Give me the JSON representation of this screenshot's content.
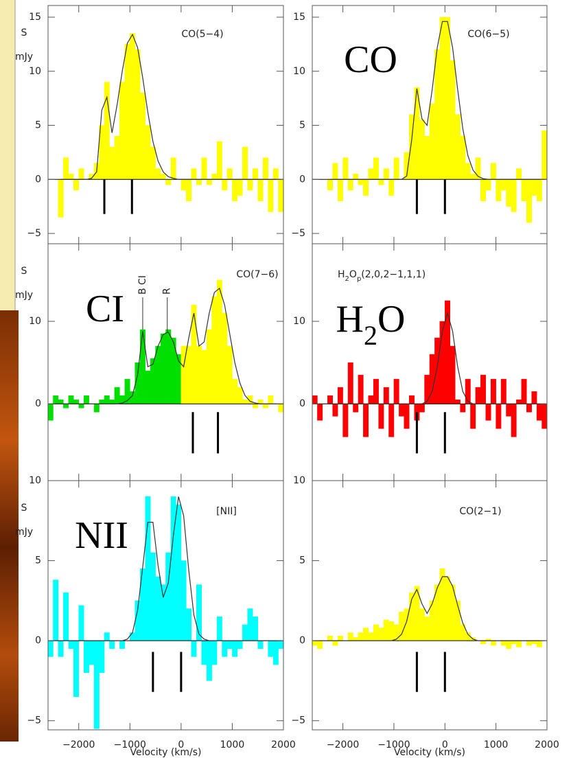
{
  "chart_data": [
    {
      "type": "step",
      "title": [
        {
          "text": "CO(5−4)"
        }
      ],
      "color": "#ffff00",
      "fit_color": "#333333",
      "x": [
        -2550,
        -2450,
        -2350,
        -2250,
        -2150,
        -2050,
        -1950,
        -1850,
        -1750,
        -1650,
        -1550,
        -1450,
        -1350,
        -1250,
        -1150,
        -1050,
        -950,
        -850,
        -750,
        -650,
        -550,
        -450,
        -350,
        -250,
        -150,
        -50,
        50,
        150,
        250,
        350,
        450,
        550,
        650,
        750,
        850,
        950,
        1050,
        1150,
        1250,
        1350,
        1450,
        1550,
        1650,
        1750,
        1850,
        1950
      ],
      "values": [
        null,
        null,
        -3.5,
        2,
        0.5,
        -1,
        1,
        0,
        0.5,
        1.5,
        5,
        9,
        3,
        4,
        9,
        12.5,
        13.5,
        12,
        8,
        5,
        3,
        1,
        0.5,
        -0.5,
        2,
        0,
        -1,
        -2,
        1,
        -0.5,
        2,
        -0.5,
        0.5,
        3.5,
        -1,
        1,
        -2,
        -1.5,
        3,
        -1,
        1,
        -2,
        2,
        -3,
        1,
        -3
      ],
      "fit": [
        null,
        null,
        0,
        0,
        0,
        0,
        0,
        0,
        0.1,
        0.7,
        6.4,
        7.6,
        4.3,
        6.9,
        10,
        12.6,
        13.4,
        12.2,
        9.4,
        6.2,
        3.5,
        1.7,
        0.7,
        0.25,
        0.1,
        0,
        0,
        0,
        0,
        0,
        0,
        0,
        0,
        0,
        0,
        0,
        0,
        0,
        0,
        0,
        0,
        0,
        0,
        0,
        0,
        0
      ],
      "markers": {
        "x": [
          -1500,
          -960
        ],
        "y": [
          -3.2,
          0
        ]
      },
      "xlim": [
        -2600,
        2000
      ],
      "xticks": [
        -2000,
        -1000,
        0,
        1000,
        2000
      ],
      "xtick_labels": false,
      "ylim": [
        -5.95,
        16.08
      ],
      "yticks": [
        15,
        10,
        5,
        0,
        {
          "value": -5,
          "label": "−5"
        }
      ],
      "ylabel": [
        "S",
        "mJy"
      ]
    },
    {
      "type": "step",
      "title": [
        {
          "text": "CO(6−5)"
        }
      ],
      "overlay": [
        {
          "text": "CO"
        }
      ],
      "color": "#ffff00",
      "fit_color": "#333333",
      "x": [
        -2550,
        -2450,
        -2350,
        -2250,
        -2150,
        -2050,
        -1950,
        -1850,
        -1750,
        -1650,
        -1550,
        -1450,
        -1350,
        -1250,
        -1150,
        -1050,
        -950,
        -850,
        -750,
        -650,
        -550,
        -450,
        -350,
        -250,
        -150,
        -50,
        50,
        150,
        250,
        350,
        450,
        550,
        650,
        750,
        850,
        950,
        1050,
        1150,
        1250,
        1350,
        1450,
        1550,
        1650,
        1750,
        1850,
        1950
      ],
      "values": [
        null,
        null,
        null,
        -1,
        1.5,
        -2,
        2,
        -1,
        0.5,
        -0.5,
        -1.5,
        1,
        2,
        -0.5,
        1,
        -1.5,
        2,
        0,
        2.5,
        6,
        8.5,
        5.5,
        4,
        7,
        12,
        15,
        15,
        11,
        6,
        4,
        1.5,
        0.5,
        2,
        -2,
        -1,
        1.5,
        -2,
        -1,
        -2.5,
        -3,
        1,
        -2,
        -4,
        -1.5,
        -2,
        4.5
      ],
      "fit": [
        null,
        null,
        null,
        0,
        0,
        0,
        0,
        0,
        0,
        0,
        0,
        0,
        0,
        0,
        0,
        0,
        0,
        0,
        0.3,
        3.7,
        8.4,
        5.6,
        5,
        8.3,
        12.2,
        14.6,
        14.6,
        12.2,
        8.3,
        4.7,
        2.2,
        0.86,
        0.28,
        0.07,
        0,
        0,
        0,
        0,
        0,
        0,
        0,
        0,
        0,
        0,
        0,
        0
      ],
      "markers": {
        "x": [
          -550,
          0
        ],
        "y": [
          -3.2,
          0
        ]
      },
      "xlim": [
        -2600,
        2000
      ],
      "xticks": [
        -2000,
        -1000,
        0,
        1000,
        2000
      ],
      "xtick_labels": false,
      "ylim": [
        -5.95,
        16.08
      ],
      "yticks": [
        15,
        10,
        5,
        0,
        {
          "value": -5,
          "label": "−5"
        }
      ]
    },
    {
      "type": "step",
      "title": [
        {
          "text": "CO(7−6)"
        }
      ],
      "overlay": [
        {
          "text": "CI"
        }
      ],
      "colors": [
        "#00e000",
        "#ffff00"
      ],
      "color_split": 0,
      "fit_color": "#333333",
      "x": [
        -2550,
        -2450,
        -2350,
        -2250,
        -2150,
        -2050,
        -1950,
        -1850,
        -1750,
        -1650,
        -1550,
        -1450,
        -1350,
        -1250,
        -1150,
        -1050,
        -950,
        -850,
        -750,
        -650,
        -550,
        -450,
        -350,
        -250,
        -150,
        -50,
        50,
        150,
        250,
        350,
        450,
        550,
        650,
        750,
        850,
        950,
        1050,
        1150,
        1250,
        1350,
        1450,
        1550,
        1650,
        1750,
        1850,
        1950
      ],
      "values": [
        -2,
        1,
        0.5,
        -0.5,
        1,
        0.5,
        -0.5,
        1,
        0,
        -1,
        0.5,
        1,
        0.5,
        2,
        1,
        3,
        1.5,
        5,
        9,
        4,
        5.5,
        7,
        8.5,
        9,
        8,
        6,
        7,
        7,
        12,
        7,
        6.5,
        9,
        13,
        15,
        11,
        7,
        3,
        2,
        0.5,
        1,
        -0.5,
        0.5,
        -0.5,
        1,
        0,
        -1
      ],
      "fit": [
        0,
        0,
        0,
        0,
        0,
        0,
        0,
        0,
        0,
        0,
        0,
        0,
        0,
        0,
        0.1,
        0.4,
        1,
        3.5,
        8.8,
        4.5,
        4.8,
        7,
        8.4,
        8.7,
        7.5,
        5.2,
        4.5,
        8,
        11,
        7,
        7.5,
        11,
        13.5,
        14,
        12,
        8.5,
        5,
        2.5,
        1,
        0.3,
        0.1,
        0,
        0,
        0,
        0,
        0
      ],
      "markers": {
        "x": [
          230,
          720
        ],
        "y": [
          -6,
          -1
        ]
      },
      "annotations": [
        {
          "text": "B CI",
          "x": -750,
          "y": 9
        },
        {
          "text": "R",
          "x": -270,
          "y": 8.7
        }
      ],
      "xlim": [
        -2600,
        2000
      ],
      "xticks": [
        -2000,
        -1000,
        0,
        1000,
        2000
      ],
      "xtick_labels": false,
      "ylim": [
        -9.3,
        19.4
      ],
      "yticks": [
        10,
        0
      ],
      "ylabel": [
        "S",
        "mJy"
      ]
    },
    {
      "type": "step",
      "title": [
        {
          "text": "H"
        },
        {
          "text": "2",
          "sub": true
        },
        {
          "text": "O"
        },
        {
          "text": "p",
          "sub": true
        },
        {
          "text": "(2,0,2−1,1,1)"
        }
      ],
      "overlay": [
        {
          "text": "H"
        },
        {
          "text": "2",
          "sub": true
        },
        {
          "text": "O"
        }
      ],
      "color": "#ff0000",
      "fit_color": "#333333",
      "x": [
        -2550,
        -2450,
        -2350,
        -2250,
        -2150,
        -2050,
        -1950,
        -1850,
        -1750,
        -1650,
        -1550,
        -1450,
        -1350,
        -1250,
        -1150,
        -1050,
        -950,
        -850,
        -750,
        -650,
        -550,
        -450,
        -350,
        -250,
        -150,
        -50,
        50,
        150,
        250,
        350,
        450,
        550,
        650,
        750,
        850,
        950,
        1050,
        1150,
        1250,
        1350,
        1450,
        1550,
        1650,
        1750,
        1850,
        1950
      ],
      "values": [
        1,
        -2,
        0,
        1,
        -1.5,
        2,
        -4,
        5,
        -1,
        3.5,
        -4,
        1,
        3,
        -3,
        2,
        -4,
        3,
        -1.5,
        -3,
        1,
        -2,
        -1,
        3.5,
        6,
        8,
        10,
        12.5,
        7,
        0.5,
        -1,
        3,
        -3,
        2,
        3.5,
        -2,
        3,
        -3,
        3,
        -1.5,
        -4,
        0.5,
        3,
        -1,
        1.5,
        -2,
        -3
      ],
      "fit": [
        0,
        0,
        0,
        0,
        0,
        0,
        0,
        0,
        0,
        0,
        0,
        0,
        0,
        0,
        0,
        0,
        0,
        0,
        0,
        0,
        0,
        0,
        0.3,
        1.5,
        4.5,
        8.8,
        11,
        8.8,
        4.5,
        1.5,
        0.3,
        0,
        0,
        0,
        0,
        0,
        0,
        0,
        0,
        0,
        0,
        0,
        0,
        0,
        0,
        0
      ],
      "markers": {
        "x": [
          -550,
          0
        ],
        "y": [
          -6,
          -1
        ]
      },
      "xlim": [
        -2600,
        2000
      ],
      "xticks": [
        -2000,
        -1000,
        0,
        1000,
        2000
      ],
      "xtick_labels": false,
      "ylim": [
        -9.3,
        19.4
      ],
      "yticks": [
        10,
        0
      ]
    },
    {
      "type": "step",
      "title": [
        {
          "text": "[NII]"
        }
      ],
      "overlay": [
        {
          "text": "NII"
        }
      ],
      "color": "#00ffff",
      "fit_color": "#333333",
      "x": [
        -2550,
        -2450,
        -2350,
        -2250,
        -2150,
        -2050,
        -1950,
        -1850,
        -1750,
        -1650,
        -1550,
        -1450,
        -1350,
        -1250,
        -1150,
        -1050,
        -950,
        -850,
        -750,
        -650,
        -550,
        -450,
        -350,
        -250,
        -150,
        -50,
        50,
        150,
        250,
        350,
        450,
        550,
        650,
        750,
        850,
        950,
        1050,
        1150,
        1250,
        1350,
        1450,
        1550,
        1650,
        1750,
        1850,
        1950
      ],
      "values": [
        -1,
        3.8,
        -1,
        3,
        -0.5,
        -3.5,
        2.2,
        -2,
        -1.5,
        -5.5,
        -2,
        0.5,
        -0.5,
        0,
        -0.5,
        0,
        0.5,
        2.5,
        4.5,
        9,
        5.5,
        4,
        3.5,
        5.5,
        9,
        8.5,
        5,
        2,
        -1,
        3.5,
        -1.5,
        -2.5,
        -1.5,
        1.5,
        -1,
        -0.5,
        -1,
        -0.5,
        1,
        2,
        1.5,
        -0.5,
        0,
        -1,
        -1.5,
        -0.5
      ],
      "fit": [
        0,
        0,
        0,
        0,
        0,
        0,
        0,
        0,
        0,
        0,
        0,
        0,
        0,
        0,
        0,
        0.1,
        0.5,
        1.9,
        4.6,
        7.4,
        7.4,
        4.7,
        2.7,
        3.6,
        6.6,
        9,
        7.8,
        4.4,
        1.6,
        0.4,
        0.1,
        0,
        0,
        0,
        0,
        0,
        0,
        0,
        0,
        0,
        0,
        0,
        0,
        0,
        0,
        0
      ],
      "markers": {
        "x": [
          -550,
          0
        ],
        "y": [
          -3.2,
          -0.7
        ]
      },
      "xlim": [
        -2600,
        2000
      ],
      "xticks": [
        {
          "value": -2000,
          "label": "−2000"
        },
        {
          "value": -1000,
          "label": "−1000"
        },
        0,
        1000,
        2000
      ],
      "xtick_labels": true,
      "xlabel": "Velocity (km/s)",
      "ylim": [
        -5.57,
        10
      ],
      "yticks": [
        10,
        5,
        0,
        {
          "value": -5,
          "label": "−5"
        }
      ],
      "ylabel": [
        "S",
        "mJy"
      ]
    },
    {
      "type": "step",
      "title": [
        {
          "text": "CO(2−1)"
        }
      ],
      "color": "#ffff00",
      "fit_color": "#333333",
      "x": [
        -2550,
        -2450,
        -2350,
        -2250,
        -2150,
        -2050,
        -1950,
        -1850,
        -1750,
        -1650,
        -1550,
        -1450,
        -1350,
        -1250,
        -1150,
        -1050,
        -950,
        -850,
        -750,
        -650,
        -550,
        -450,
        -350,
        -250,
        -150,
        -50,
        50,
        150,
        250,
        350,
        450,
        550,
        650,
        750,
        850,
        950,
        1050,
        1150,
        1250,
        1350,
        1450,
        1550,
        1650,
        1750,
        1850,
        1950
      ],
      "values": [
        -0.3,
        -0.5,
        0,
        0.3,
        -0.3,
        0.3,
        0,
        0.5,
        0.2,
        0.5,
        0.8,
        0.5,
        1,
        0.8,
        1.3,
        1.2,
        1,
        1.8,
        2,
        3,
        3.4,
        2,
        1.5,
        2.5,
        3.5,
        4.5,
        4,
        3.5,
        2.5,
        1,
        0.5,
        0.2,
        0,
        -0.2,
        0.1,
        -0.3,
        0,
        -0.3,
        -0.5,
        -0.2,
        -0.4,
        0,
        -0.3,
        -0.2,
        -0.4,
        0
      ],
      "fit": [
        0,
        0,
        0,
        0,
        0,
        0,
        0,
        0,
        0,
        0,
        0,
        0,
        0,
        0,
        0,
        0,
        0.1,
        0.4,
        1.2,
        2.6,
        3.2,
        2.3,
        1.7,
        2.3,
        3.3,
        4,
        4,
        3.4,
        2.2,
        1.1,
        0.4,
        0.1,
        0,
        0,
        0,
        0,
        0,
        0,
        0,
        0,
        0,
        0,
        0,
        0,
        0,
        0
      ],
      "markers": {
        "x": [
          -550,
          0
        ],
        "y": [
          -3.2,
          -0.7
        ]
      },
      "xlim": [
        -2600,
        2000
      ],
      "xticks": [
        {
          "value": -2000,
          "label": "−2000"
        },
        {
          "value": -1000,
          "label": "−1000"
        },
        0,
        1000,
        2000
      ],
      "xtick_labels": true,
      "xlabel": "Velocity (km/s)",
      "ylim": [
        -5.57,
        10
      ],
      "yticks": [
        10,
        5,
        0,
        {
          "value": -5,
          "label": "−5"
        }
      ]
    }
  ]
}
